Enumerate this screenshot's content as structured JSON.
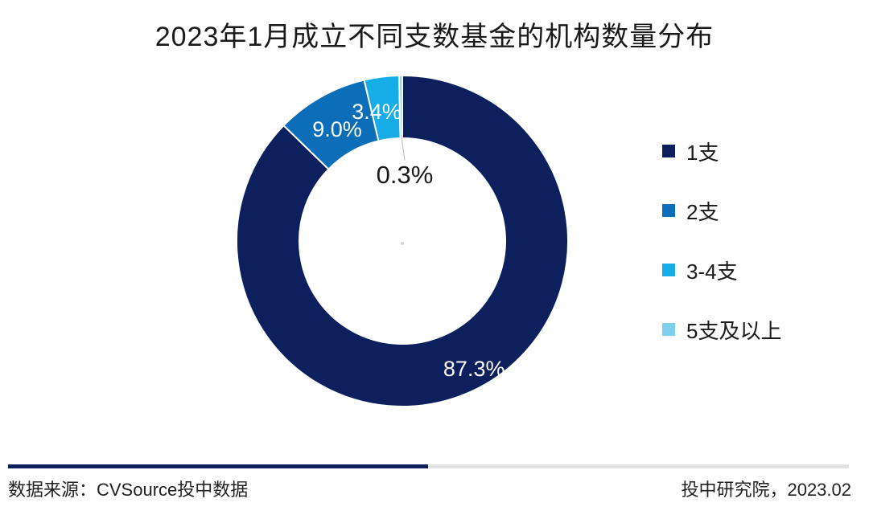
{
  "chart_data": {
    "type": "pie",
    "variant": "donut",
    "title": "2023年1月成立不同支数基金的机构数量分布",
    "categories": [
      "1支",
      "2支",
      "3-4支",
      "5支及以上"
    ],
    "values": [
      87.3,
      9.0,
      3.4,
      0.3
    ],
    "value_labels": [
      "87.3%",
      "9.0%",
      "3.4%",
      "0.3%"
    ],
    "colors": [
      "#0d1f5c",
      "#0c6db8",
      "#16ace8",
      "#7fd0ec"
    ],
    "legend_position": "right"
  },
  "footer": {
    "source": "数据来源：CVSource投中数据",
    "credit": "投中研究院，2023.02"
  }
}
